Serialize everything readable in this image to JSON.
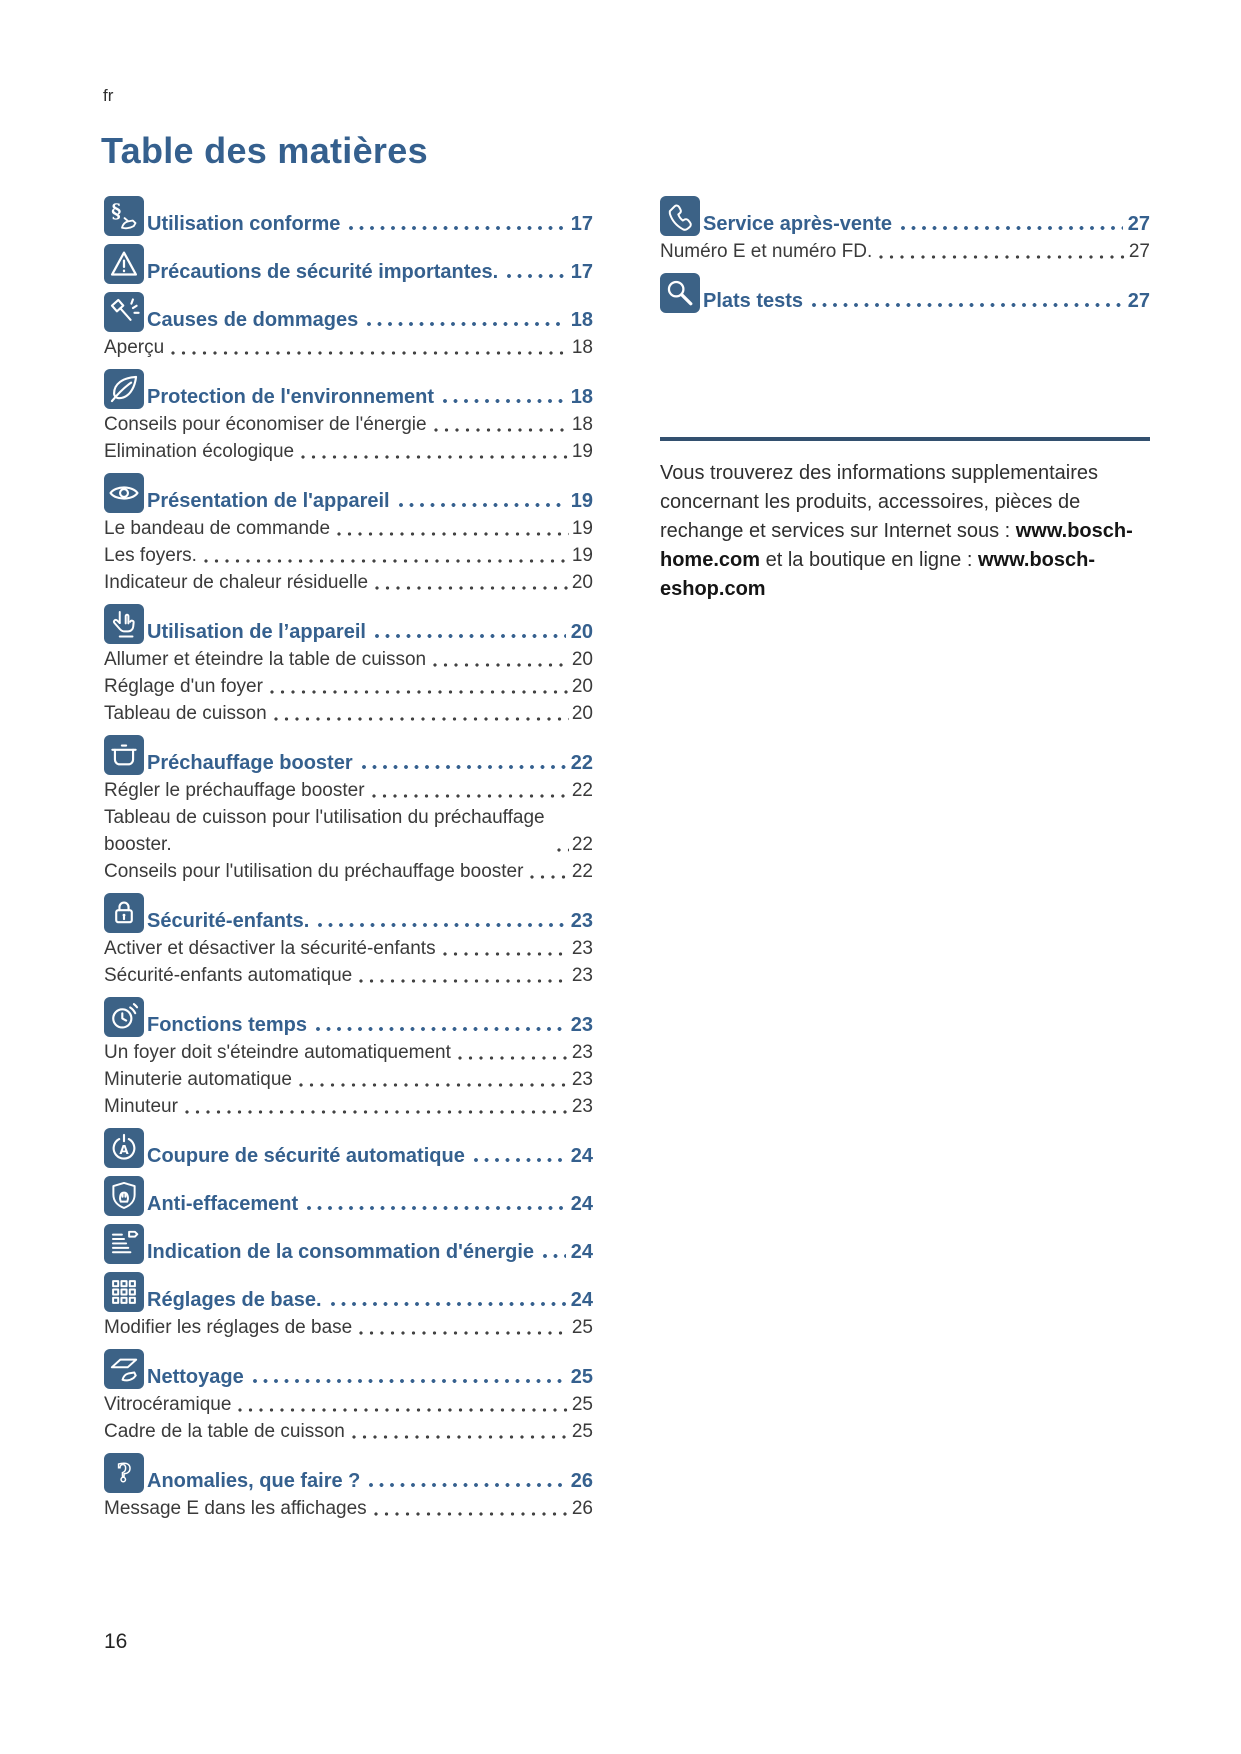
{
  "header": {
    "language": "fr",
    "title": "Table des matières"
  },
  "toc": {
    "left_sections": [
      {
        "icon": "paragraph-hand",
        "title": "Utilisation conforme",
        "page": "17",
        "subitems": []
      },
      {
        "icon": "warning",
        "title": "Précautions de sécurité importantes.",
        "page": "17",
        "subitems": []
      },
      {
        "icon": "hammer-damage",
        "title": "Causes de dommages",
        "page": "18",
        "subitems": [
          {
            "label": "Aperçu",
            "page": "18"
          }
        ]
      },
      {
        "icon": "leaf-environment",
        "title": "Protection de l'environnement",
        "page": "18",
        "subitems": [
          {
            "label": "Conseils pour économiser de l'énergie",
            "page": "18"
          },
          {
            "label": "Elimination écologique",
            "page": "19"
          }
        ]
      },
      {
        "icon": "eye-overview",
        "title": "Présentation de l'appareil",
        "page": "19",
        "subitems": [
          {
            "label": "Le bandeau de commande",
            "page": "19"
          },
          {
            "label": "Les foyers.",
            "page": "19"
          },
          {
            "label": "Indicateur de chaleur résiduelle",
            "page": "20"
          }
        ]
      },
      {
        "icon": "hand-operation",
        "title": "Utilisation de l’appareil",
        "page": "20",
        "subitems": [
          {
            "label": "Allumer et éteindre la table de cuisson",
            "page": "20"
          },
          {
            "label": "Réglage d'un foyer",
            "page": "20"
          },
          {
            "label": "Tableau de cuisson",
            "page": "20"
          }
        ]
      },
      {
        "icon": "pot-booster",
        "title": "Préchauffage booster",
        "page": "22",
        "subitems": [
          {
            "label": "Régler le préchauffage booster",
            "page": "22"
          },
          {
            "label": "Tableau de cuisson pour l'utilisation du préchauffage booster.",
            "page": "22"
          },
          {
            "label": "Conseils pour l'utilisation du préchauffage booster",
            "page": "22"
          }
        ]
      },
      {
        "icon": "padlock-childlock",
        "title": "Sécurité-enfants.",
        "page": "23",
        "subitems": [
          {
            "label": "Activer et désactiver la sécurité-enfants",
            "page": "23"
          },
          {
            "label": "Sécurité-enfants automatique",
            "page": "23"
          }
        ]
      },
      {
        "icon": "clock-time",
        "title": "Fonctions temps",
        "page": "23",
        "subitems": [
          {
            "label": "Un foyer doit s'éteindre automatiquement",
            "page": "23"
          },
          {
            "label": "Minuterie automatique",
            "page": "23"
          },
          {
            "label": "Minuteur",
            "page": "23"
          }
        ]
      },
      {
        "icon": "power-auto-shutoff",
        "title": "Coupure de sécurité automatique",
        "page": "24",
        "subitems": []
      },
      {
        "icon": "shield-wipe-protection",
        "title": "Anti-effacement",
        "page": "24",
        "subitems": []
      },
      {
        "icon": "energy-bars",
        "title": "Indication de la consommation d'énergie",
        "page": "24",
        "subitems": []
      },
      {
        "icon": "grid-settings",
        "title": "Réglages de base.",
        "page": "24",
        "subitems": [
          {
            "label": "Modifier les réglages de base",
            "page": "25"
          }
        ]
      },
      {
        "icon": "cloth-cleaning",
        "title": "Nettoyage",
        "page": "25",
        "subitems": [
          {
            "label": "Vitrocéramique",
            "page": "25"
          },
          {
            "label": "Cadre de la table de cuisson",
            "page": "25"
          }
        ]
      },
      {
        "icon": "question-troubleshooting",
        "title": "Anomalies, que faire ?",
        "page": "26",
        "subitems": [
          {
            "label": "Message E dans les affichages",
            "page": "26"
          }
        ]
      }
    ],
    "right_sections": [
      {
        "icon": "phone-service",
        "title": "Service après-vente",
        "page": "27",
        "subitems": [
          {
            "label": "Numéro E et numéro FD.",
            "page": "27"
          }
        ]
      },
      {
        "icon": "magnifier-test-dishes",
        "title": "Plats tests",
        "page": "27",
        "subitems": []
      }
    ]
  },
  "info": {
    "segments": [
      {
        "text": "Vous trouverez des informations supplementaires concernant les produits, accessoires, pièces de rechange et services sur Internet sous : ",
        "bold": false
      },
      {
        "text": "www.bosch-home.com",
        "bold": true
      },
      {
        "text": " et la boutique en ligne : ",
        "bold": false
      },
      {
        "text": "www.bosch-eshop.com",
        "bold": true
      }
    ]
  },
  "footer": {
    "page_number": "16"
  },
  "colors": {
    "accent": "#35608E",
    "icon_bg": "#3C6286",
    "body_text": "#3A3A3A",
    "rule": "#33506F"
  }
}
